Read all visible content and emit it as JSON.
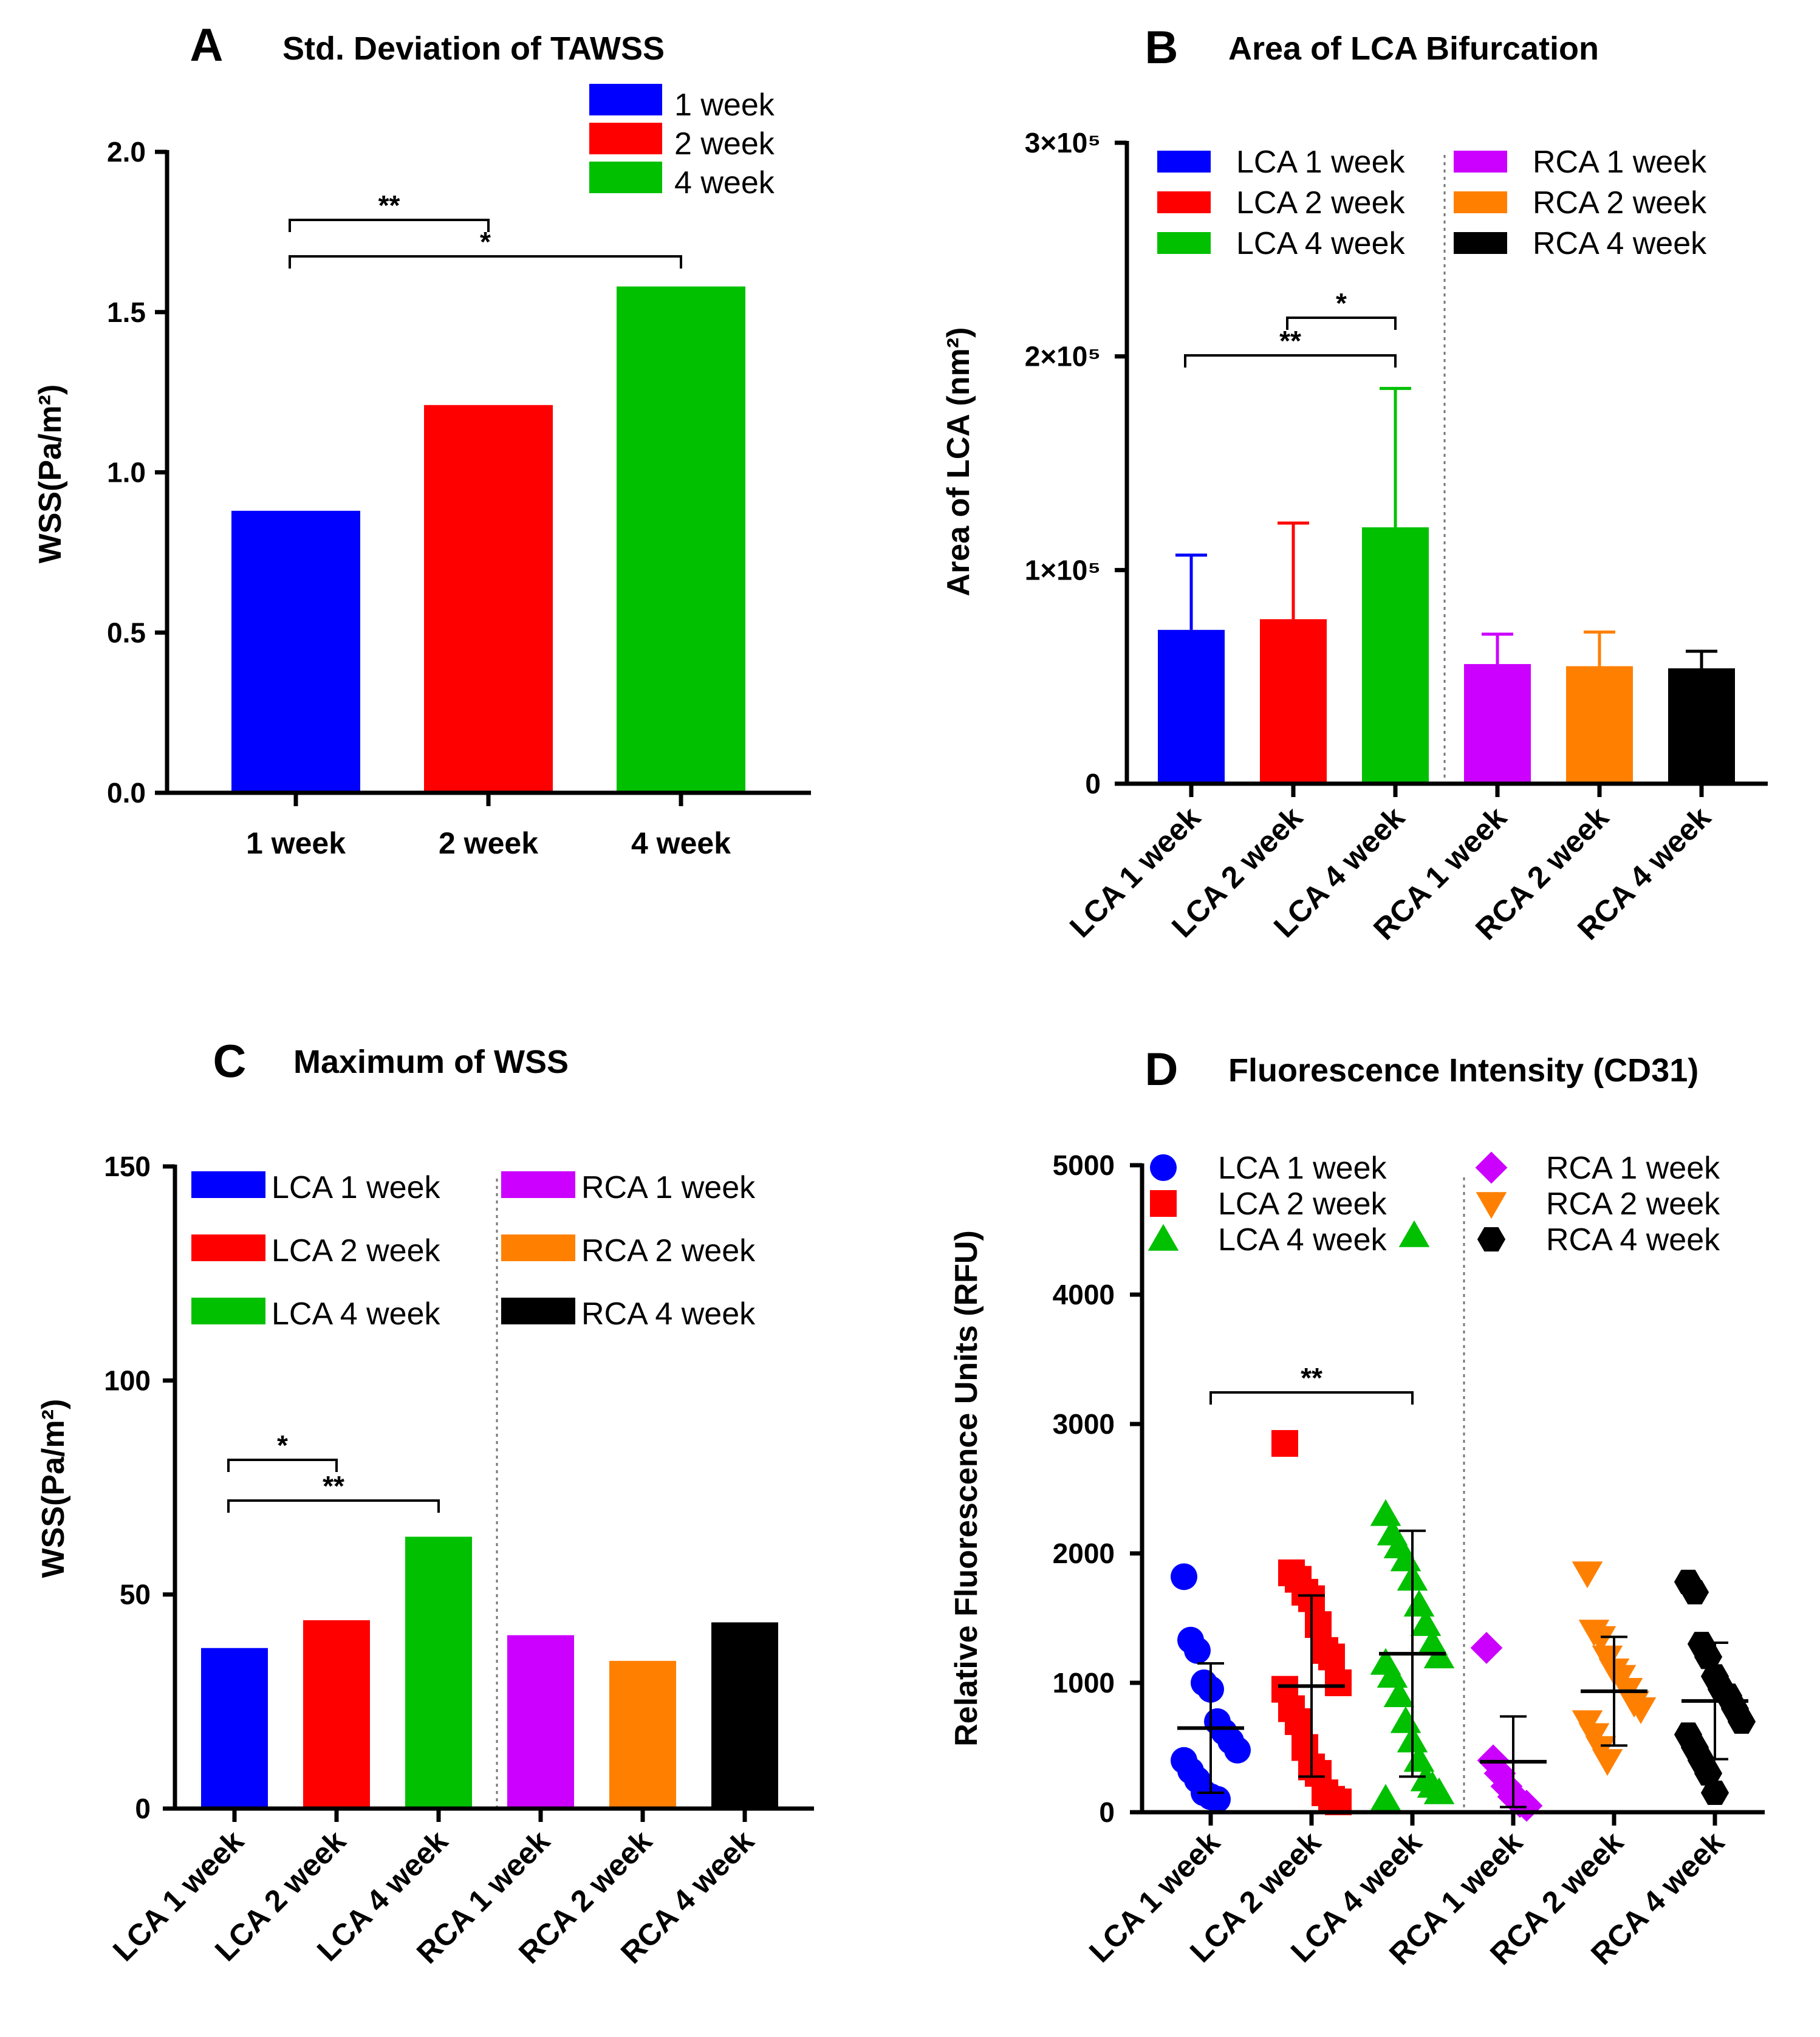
{
  "chart_data": [
    {
      "id": "A",
      "type": "bar",
      "letter": "A",
      "title": "Std. Deviation of TAWSS",
      "ylabel": "WSS(Pa/m²)",
      "ylim": [
        0,
        2.0
      ],
      "yticks": [
        "0.0",
        "0.5",
        "1.0",
        "1.5",
        "2.0"
      ],
      "categories": [
        "1 week",
        "2 week",
        "4 week"
      ],
      "values": [
        0.88,
        1.21,
        1.58
      ],
      "colors": [
        "#0000FF",
        "#FF0000",
        "#00C000"
      ],
      "legend": [
        {
          "label": "1 week",
          "color": "#0000FF"
        },
        {
          "label": "2 week",
          "color": "#FF0000"
        },
        {
          "label": "4 week",
          "color": "#00C000"
        }
      ],
      "significance": [
        {
          "from": 0,
          "to": 1,
          "label": "**"
        },
        {
          "from": 0,
          "to": 2,
          "label": "*"
        }
      ]
    },
    {
      "id": "B",
      "type": "bar",
      "letter": "B",
      "title": "Area of LCA Bifurcation",
      "ylabel": "Area of LCA  (nm²)",
      "ylim": [
        0,
        300000
      ],
      "yticks": [
        "0",
        "1×10⁵",
        "2×10⁵",
        "3×10⁵"
      ],
      "categories": [
        "LCA 1 week",
        "LCA 2 week",
        "LCA 4 week",
        "RCA 1 week",
        "RCA 2 week",
        "RCA 4 week"
      ],
      "values": [
        72000,
        77000,
        120000,
        56000,
        55000,
        54000
      ],
      "errors": [
        35000,
        45000,
        65000,
        14000,
        16000,
        8000
      ],
      "colors": [
        "#0000FF",
        "#FF0000",
        "#00C000",
        "#CC00FF",
        "#FF8000",
        "#000000"
      ],
      "legend": [
        {
          "label": "LCA 1 week",
          "color": "#0000FF"
        },
        {
          "label": "LCA 2 week",
          "color": "#FF0000"
        },
        {
          "label": "LCA 4 week",
          "color": "#00C000"
        },
        {
          "label": "RCA 1 week",
          "color": "#CC00FF"
        },
        {
          "label": "RCA 2 week",
          "color": "#FF8000"
        },
        {
          "label": "RCA 4 week",
          "color": "#000000"
        }
      ],
      "significance": [
        {
          "from": 1,
          "to": 2,
          "label": "*"
        },
        {
          "from": 0,
          "to": 2,
          "label": "**"
        }
      ]
    },
    {
      "id": "C",
      "type": "bar",
      "letter": "C",
      "title": "Maximum of WSS",
      "ylabel": "WSS(Pa/m²)",
      "ylim": [
        0,
        150
      ],
      "yticks": [
        "0",
        "50",
        "100",
        "150"
      ],
      "categories": [
        "LCA 1 week",
        "LCA 2 week",
        "LCA 4 week",
        "RCA 1 week",
        "RCA 2 week",
        "RCA 4 week"
      ],
      "values": [
        37.5,
        44,
        63.5,
        40.5,
        34.5,
        43.5
      ],
      "colors": [
        "#0000FF",
        "#FF0000",
        "#00C000",
        "#CC00FF",
        "#FF8000",
        "#000000"
      ],
      "legend": [
        {
          "label": "LCA 1 week",
          "color": "#0000FF"
        },
        {
          "label": "LCA 2 week",
          "color": "#FF0000"
        },
        {
          "label": "LCA 4 week",
          "color": "#00C000"
        },
        {
          "label": "RCA 1 week",
          "color": "#CC00FF"
        },
        {
          "label": "RCA 2 week",
          "color": "#FF8000"
        },
        {
          "label": "RCA 4 week",
          "color": "#000000"
        }
      ],
      "significance": [
        {
          "from": 0,
          "to": 1,
          "label": "*"
        },
        {
          "from": 0,
          "to": 2,
          "label": "**"
        }
      ]
    },
    {
      "id": "D",
      "type": "scatter",
      "letter": "D",
      "title": "Fluorescence Intensity (CD31)",
      "ylabel": "Relative Fluorescence Units (RFU)",
      "ylim": [
        0,
        5000
      ],
      "yticks": [
        "0",
        "1000",
        "2000",
        "3000",
        "4000",
        "5000"
      ],
      "categories": [
        "LCA 1 week",
        "LCA 2 week",
        "LCA 4 week",
        "RCA 1 week",
        "RCA 2 week",
        "RCA 4 week"
      ],
      "colors": [
        "#0000FF",
        "#FF0000",
        "#00C000",
        "#CC00FF",
        "#FF8000",
        "#000000"
      ],
      "markers": [
        "circle",
        "square",
        "triangle-up",
        "diamond",
        "triangle-down",
        "hexagon"
      ],
      "means": [
        650,
        975,
        1225,
        390,
        935,
        860
      ],
      "sds": [
        500,
        700,
        950,
        350,
        420,
        450
      ],
      "points": [
        [
          1820,
          1330,
          1250,
          1000,
          950,
          700,
          620,
          550,
          480,
          400,
          320,
          250,
          150,
          120,
          100
        ],
        [
          2850,
          1850,
          1800,
          1700,
          1650,
          1450,
          1250,
          1200,
          1000,
          950,
          800,
          700,
          500,
          350,
          300,
          150,
          100,
          80
        ],
        [
          2300,
          2150,
          2050,
          1950,
          1800,
          1600,
          1450,
          1300,
          1200,
          1150,
          1050,
          900,
          700,
          550,
          400,
          250,
          200,
          150,
          100
        ],
        [
          1270,
          400,
          300,
          200,
          120,
          80,
          50
        ],
        [
          1850,
          1400,
          1350,
          1200,
          1100,
          1050,
          950,
          850,
          800,
          700,
          600,
          500,
          400
        ],
        [
          1780,
          1700,
          1300,
          1200,
          1050,
          950,
          900,
          800,
          700,
          600,
          500,
          400,
          300,
          150
        ]
      ],
      "legend": [
        {
          "label": "LCA 1 week",
          "color": "#0000FF",
          "marker": "circle"
        },
        {
          "label": "LCA 2 week",
          "color": "#FF0000",
          "marker": "square"
        },
        {
          "label": "LCA 4 week",
          "color": "#00C000",
          "marker": "triangle-up"
        },
        {
          "label": "RCA 1 week",
          "color": "#CC00FF",
          "marker": "diamond"
        },
        {
          "label": "RCA 2 week",
          "color": "#FF8000",
          "marker": "triangle-down"
        },
        {
          "label": "RCA 4 week",
          "color": "#000000",
          "marker": "hexagon"
        }
      ],
      "significance": [
        {
          "from": 0,
          "to": 2,
          "label": "**"
        }
      ]
    }
  ]
}
